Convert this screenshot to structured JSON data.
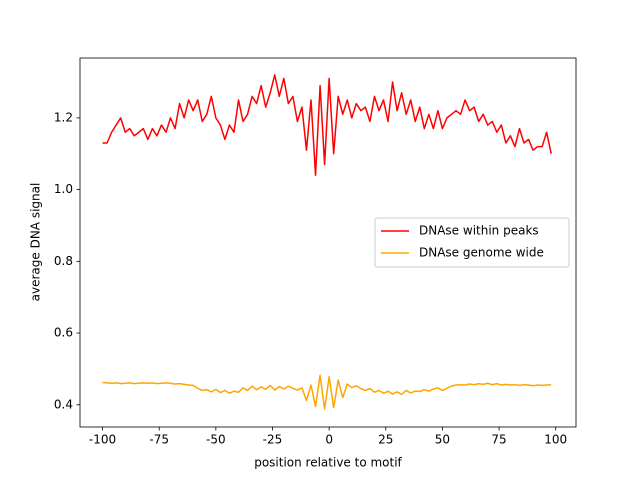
{
  "chart_data": {
    "type": "line",
    "xlabel": "position relative to motif",
    "ylabel": "average DNA signal",
    "x": [
      -100,
      -98,
      -96,
      -94,
      -92,
      -90,
      -88,
      -86,
      -84,
      -82,
      -80,
      -78,
      -76,
      -74,
      -72,
      -70,
      -68,
      -66,
      -64,
      -62,
      -60,
      -58,
      -56,
      -54,
      -52,
      -50,
      -48,
      -46,
      -44,
      -42,
      -40,
      -38,
      -36,
      -34,
      -32,
      -30,
      -28,
      -26,
      -24,
      -22,
      -20,
      -18,
      -16,
      -14,
      -12,
      -10,
      -8,
      -6,
      -4,
      -2,
      0,
      2,
      4,
      6,
      8,
      10,
      12,
      14,
      16,
      18,
      20,
      22,
      24,
      26,
      28,
      30,
      32,
      34,
      36,
      38,
      40,
      42,
      44,
      46,
      48,
      50,
      52,
      54,
      56,
      58,
      60,
      62,
      64,
      66,
      68,
      70,
      72,
      74,
      76,
      78,
      80,
      82,
      84,
      86,
      88,
      90,
      92,
      94,
      96,
      98
    ],
    "series": [
      {
        "name": "DNAse within peaks",
        "color": "#ff0000",
        "values": [
          1.13,
          1.13,
          1.16,
          1.18,
          1.2,
          1.16,
          1.17,
          1.15,
          1.16,
          1.17,
          1.14,
          1.17,
          1.15,
          1.18,
          1.16,
          1.2,
          1.17,
          1.24,
          1.2,
          1.25,
          1.22,
          1.25,
          1.19,
          1.21,
          1.26,
          1.2,
          1.18,
          1.14,
          1.18,
          1.16,
          1.25,
          1.19,
          1.21,
          1.26,
          1.24,
          1.29,
          1.23,
          1.27,
          1.32,
          1.26,
          1.31,
          1.24,
          1.26,
          1.19,
          1.23,
          1.11,
          1.25,
          1.04,
          1.29,
          1.07,
          1.31,
          1.1,
          1.26,
          1.21,
          1.25,
          1.2,
          1.24,
          1.22,
          1.23,
          1.19,
          1.26,
          1.22,
          1.25,
          1.19,
          1.3,
          1.22,
          1.27,
          1.21,
          1.25,
          1.19,
          1.23,
          1.17,
          1.21,
          1.17,
          1.22,
          1.17,
          1.2,
          1.21,
          1.22,
          1.21,
          1.25,
          1.22,
          1.23,
          1.19,
          1.21,
          1.18,
          1.19,
          1.16,
          1.18,
          1.13,
          1.15,
          1.12,
          1.17,
          1.13,
          1.14,
          1.11,
          1.12,
          1.12,
          1.16,
          1.1
        ]
      },
      {
        "name": "DNAse genome wide",
        "color": "#ffa500",
        "values": [
          0.462,
          0.461,
          0.46,
          0.461,
          0.459,
          0.46,
          0.461,
          0.459,
          0.46,
          0.461,
          0.46,
          0.461,
          0.459,
          0.46,
          0.461,
          0.46,
          0.458,
          0.459,
          0.457,
          0.455,
          0.454,
          0.446,
          0.44,
          0.442,
          0.436,
          0.443,
          0.434,
          0.44,
          0.432,
          0.438,
          0.435,
          0.447,
          0.44,
          0.452,
          0.442,
          0.45,
          0.443,
          0.454,
          0.441,
          0.451,
          0.444,
          0.452,
          0.446,
          0.441,
          0.447,
          0.412,
          0.455,
          0.395,
          0.482,
          0.388,
          0.478,
          0.392,
          0.469,
          0.42,
          0.458,
          0.448,
          0.453,
          0.445,
          0.44,
          0.445,
          0.435,
          0.44,
          0.432,
          0.438,
          0.43,
          0.436,
          0.429,
          0.44,
          0.433,
          0.438,
          0.437,
          0.442,
          0.438,
          0.444,
          0.447,
          0.44,
          0.446,
          0.452,
          0.455,
          0.456,
          0.455,
          0.458,
          0.456,
          0.459,
          0.457,
          0.46,
          0.456,
          0.459,
          0.455,
          0.457,
          0.455,
          0.456,
          0.454,
          0.456,
          0.455,
          0.453,
          0.455,
          0.454,
          0.455,
          0.456
        ]
      }
    ],
    "xlim": [
      -109.95,
      108.95
    ],
    "ylim": [
      0.338,
      1.367
    ],
    "xticks": [
      -100,
      -75,
      -50,
      -25,
      0,
      25,
      50,
      75,
      100
    ],
    "yticks": [
      0.4,
      0.6,
      0.8,
      {
        "value": 1,
        "label": "1.0"
      },
      1.2
    ],
    "legend": "center right",
    "grid": false
  }
}
